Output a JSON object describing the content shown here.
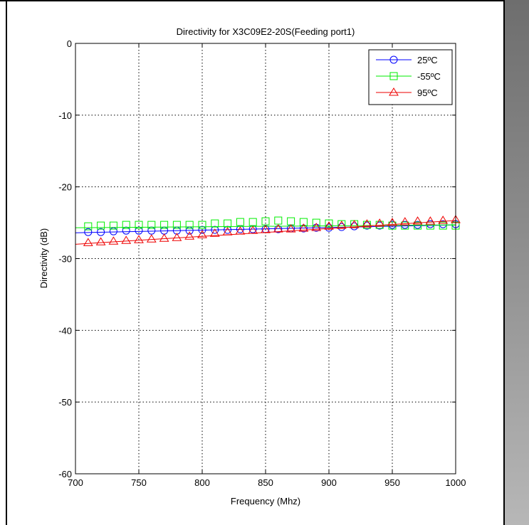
{
  "chart_data": {
    "type": "line",
    "title": "Directivity for X3C09E2-20S(Feeding port1)",
    "xlabel": "Frequency (Mhz)",
    "ylabel": "Directivity (dB)",
    "xlim": [
      700,
      1000
    ],
    "ylim": [
      -60,
      0
    ],
    "xticks": [
      700,
      750,
      800,
      850,
      900,
      950,
      1000
    ],
    "yticks": [
      -60,
      -50,
      -40,
      -30,
      -20,
      -10,
      0
    ],
    "grid": true,
    "legend_position": "top-right",
    "series": [
      {
        "name": "25ºC",
        "color": "#0000ff",
        "marker": "circle",
        "line_x": [
          700,
          1000
        ],
        "line_y": [
          -26.4,
          -25.3
        ],
        "marker_x": [
          710,
          720,
          730,
          740,
          750,
          760,
          770,
          780,
          790,
          800,
          810,
          820,
          830,
          840,
          850,
          860,
          870,
          880,
          890,
          900,
          910,
          920,
          930,
          940,
          950,
          960,
          970,
          980,
          990,
          1000
        ],
        "marker_y": [
          -26.3,
          -26.3,
          -26.2,
          -26.1,
          -26.1,
          -26.1,
          -26.1,
          -26.1,
          -26.1,
          -26.0,
          -26.0,
          -26.0,
          -25.9,
          -25.9,
          -25.9,
          -25.9,
          -25.8,
          -25.8,
          -25.7,
          -25.7,
          -25.6,
          -25.5,
          -25.4,
          -25.4,
          -25.3,
          -25.3,
          -25.3,
          -25.2,
          -25.2,
          -25.2
        ]
      },
      {
        "name": "-55ºC",
        "color": "#00ee00",
        "marker": "square",
        "line_x": [
          700,
          1000
        ],
        "line_y": [
          -25.7,
          -25.3
        ],
        "marker_x": [
          710,
          720,
          730,
          740,
          750,
          760,
          770,
          780,
          790,
          800,
          810,
          820,
          830,
          840,
          850,
          860,
          870,
          880,
          890,
          900,
          910,
          920,
          930,
          940,
          950,
          960,
          970,
          980,
          990,
          1000
        ],
        "marker_y": [
          -25.5,
          -25.4,
          -25.4,
          -25.3,
          -25.3,
          -25.3,
          -25.3,
          -25.3,
          -25.3,
          -25.3,
          -25.1,
          -25.1,
          -24.9,
          -24.9,
          -24.8,
          -24.7,
          -24.8,
          -24.9,
          -25.0,
          -25.1,
          -25.2,
          -25.2,
          -25.3,
          -25.3,
          -25.4,
          -25.4,
          -25.4,
          -25.4,
          -25.4,
          -25.4
        ]
      },
      {
        "name": "95ºC",
        "color": "#ee0000",
        "marker": "triangle",
        "line_x": [
          700,
          1000
        ],
        "line_y": [
          -28.0,
          -24.7
        ],
        "marker_x": [
          710,
          720,
          730,
          740,
          750,
          760,
          770,
          780,
          790,
          800,
          810,
          820,
          830,
          840,
          850,
          860,
          870,
          880,
          890,
          900,
          910,
          920,
          930,
          940,
          950,
          960,
          970,
          980,
          990,
          1000
        ],
        "marker_y": [
          -27.8,
          -27.7,
          -27.6,
          -27.5,
          -27.4,
          -27.3,
          -27.2,
          -27.1,
          -26.9,
          -26.7,
          -26.5,
          -26.3,
          -26.2,
          -26.1,
          -26.0,
          -25.9,
          -25.9,
          -25.8,
          -25.7,
          -25.5,
          -25.4,
          -25.3,
          -25.2,
          -25.1,
          -25.0,
          -24.9,
          -24.8,
          -24.8,
          -24.7,
          -24.6
        ]
      }
    ]
  }
}
